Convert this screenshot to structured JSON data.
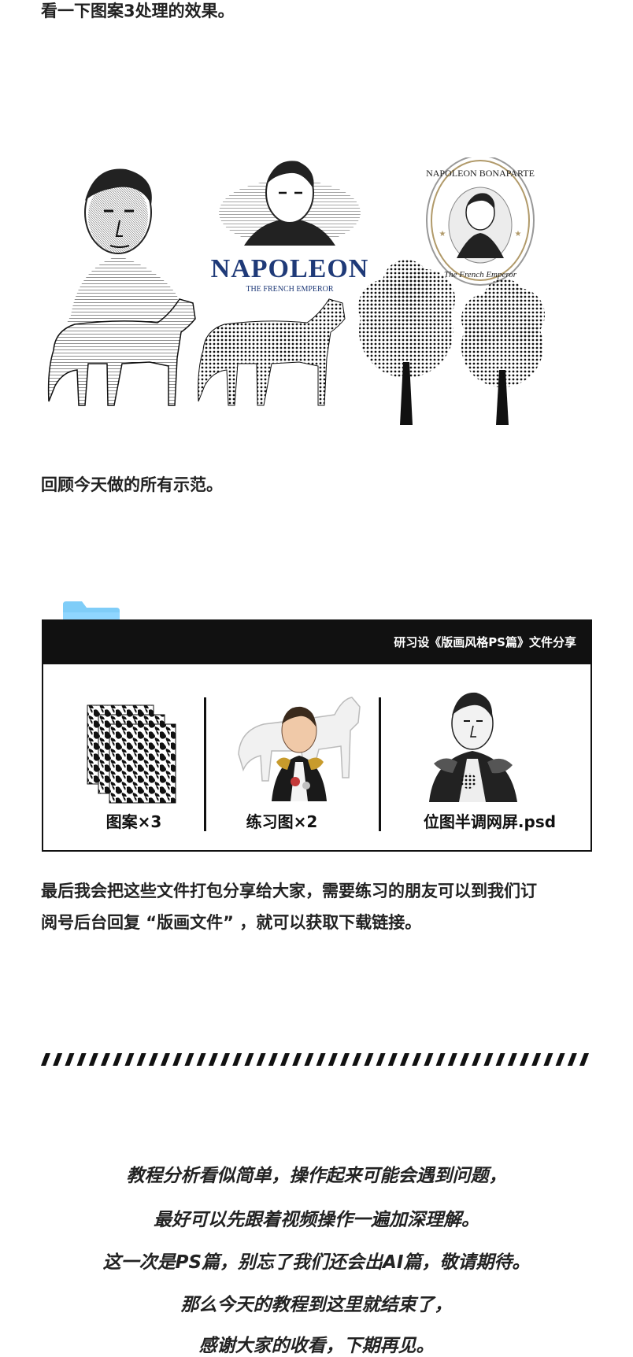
{
  "intro_text": "看一下图案3处理的效果。",
  "showcase": {
    "logo_title": "NAPOLEON",
    "logo_subtitle": "THE FRENCH EMPEROR",
    "seal_top_text": "NAPOLEON BONAPARTE",
    "seal_bottom_text": "The French Emperor"
  },
  "review_text": "回顾今天做的所有示范。",
  "file_card": {
    "title": "研习设《版画风格PS篇》文件分享",
    "items": [
      {
        "label": "图案×3",
        "icon": "pattern-stack-icon"
      },
      {
        "label": "练习图×2",
        "icon": "napoleon-color-thumbnail"
      },
      {
        "label": "位图半调网屏.psd",
        "icon": "napoleon-halftone-thumbnail"
      }
    ],
    "folder_color": "#7fcdf8"
  },
  "download_text": {
    "line1": "最后我会把这些文件打包分享给大家，需要练习的朋友可以到我们订",
    "line2": "阅号后台回复 “版画文件” ，就可以获取下载链接。"
  },
  "outro": [
    "教程分析看似简单，操作起来可能会遇到问题，",
    "最好可以先跟着视频操作一遍加深理解。",
    "这一次是PS篇，别忘了我们还会出AI篇，敬请期待。",
    "那么今天的教程到这里就结束了，",
    "感谢大家的收看，下期再见。"
  ],
  "colors": {
    "logo_navy": "#1f3a78",
    "seal_gold": "#b19a6a",
    "card_black": "#111111"
  }
}
